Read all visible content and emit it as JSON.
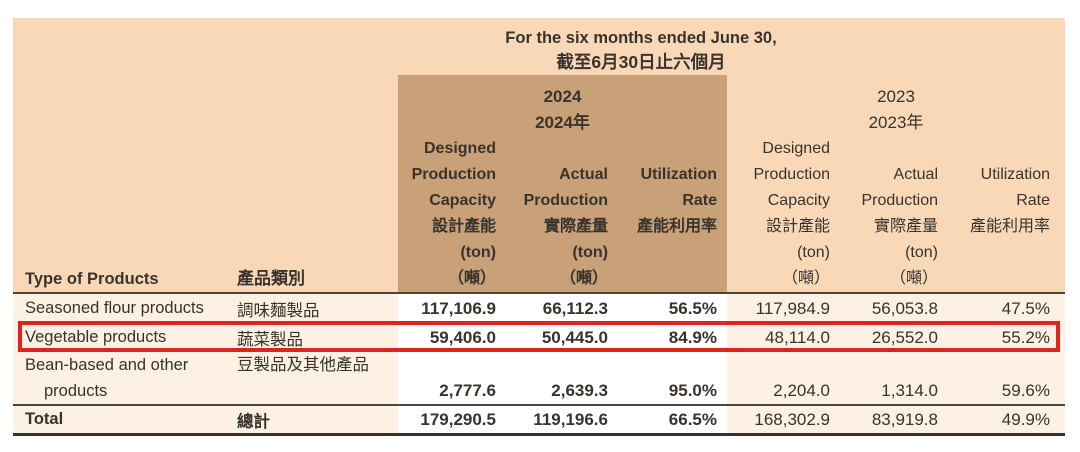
{
  "header": {
    "title_en": "For the six months ended June 30,",
    "title_zh": "截至6月30日止六個月",
    "type_col_en": "Type of Products",
    "type_col_zh": "產品類別",
    "periods": [
      {
        "year": "2024",
        "year_zh": "2024年",
        "columns": [
          {
            "name": "designed-production-capacity",
            "lines": [
              "Designed",
              "Production",
              "Capacity",
              "設計產能",
              "(ton)",
              "（噸）"
            ]
          },
          {
            "name": "actual-production",
            "lines": [
              "",
              "Actual",
              "Production",
              "實際產量",
              "(ton)",
              "（噸）"
            ]
          },
          {
            "name": "utilization-rate",
            "lines": [
              "",
              "Utilization",
              "Rate",
              "產能利用率",
              "",
              ""
            ]
          }
        ]
      },
      {
        "year": "2023",
        "year_zh": "2023年",
        "columns": [
          {
            "name": "designed-production-capacity",
            "lines": [
              "Designed",
              "Production",
              "Capacity",
              "設計產能",
              "(ton)",
              "（噸）"
            ]
          },
          {
            "name": "actual-production",
            "lines": [
              "",
              "Actual",
              "Production",
              "實際產量",
              "(ton)",
              "（噸）"
            ]
          },
          {
            "name": "utilization-rate",
            "lines": [
              "",
              "Utilization",
              "Rate",
              "產能利用率",
              "",
              ""
            ]
          }
        ]
      }
    ]
  },
  "rows": [
    {
      "en": "Seasoned flour products",
      "zh": "調味麵製品",
      "v2024": [
        "117,106.9",
        "66,112.3",
        "56.5%"
      ],
      "v2023": [
        "117,984.9",
        "56,053.8",
        "47.5%"
      ],
      "highlighted": false
    },
    {
      "en": "Vegetable products",
      "zh": "蔬菜製品",
      "v2024": [
        "59,406.0",
        "50,445.0",
        "84.9%"
      ],
      "v2023": [
        "48,114.0",
        "26,552.0",
        "55.2%"
      ],
      "highlighted": true
    },
    {
      "en_line1": "Bean-based and other",
      "en_line2": "products",
      "zh": "豆製品及其他產品",
      "v2024": [
        "2,777.6",
        "2,639.3",
        "95.0%"
      ],
      "v2023": [
        "2,204.0",
        "1,314.0",
        "59.6%"
      ],
      "highlighted": false
    }
  ],
  "total": {
    "en": "Total",
    "zh": "總計",
    "v2024": [
      "179,290.5",
      "119,196.6",
      "66.5%"
    ],
    "v2023": [
      "168,302.9",
      "83,919.8",
      "49.9%"
    ]
  },
  "colors": {
    "header_bg": "#f9d8b8",
    "block_bg": "#c9a178",
    "row_bg": "#fcf1e2",
    "block_col_bg": "#ffffff",
    "rule": "#4a453e",
    "rule_heavy": "#37332c",
    "highlight": "#e0231b",
    "text": "#38332c"
  }
}
